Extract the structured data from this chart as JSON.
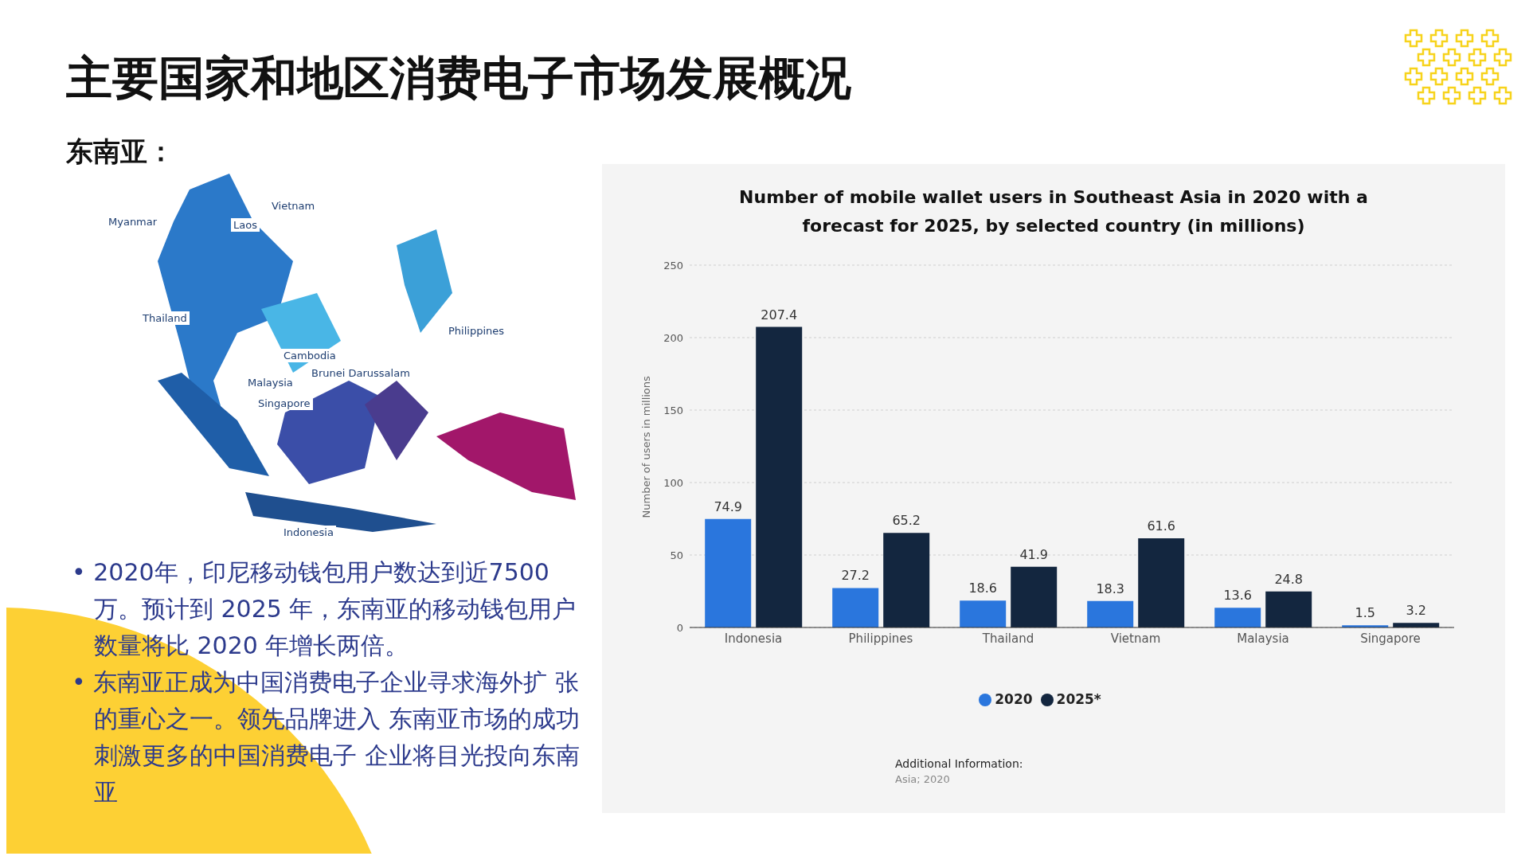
{
  "chart_data": {
    "type": "bar",
    "title": "Number of mobile wallet users in Southeast Asia in 2020 with a forecast for 2025, by selected country (in millions)",
    "ylabel": "Number of users in millions",
    "categories": [
      "Indonesia",
      "Philippines",
      "Thailand",
      "Vietnam",
      "Malaysia",
      "Singapore"
    ],
    "series": [
      {
        "name": "2020",
        "color": "#2a76dd",
        "values": [
          74.9,
          27.2,
          18.6,
          18.3,
          13.6,
          1.5
        ]
      },
      {
        "name": "2025*",
        "color": "#13263f",
        "values": [
          207.4,
          65.2,
          41.9,
          61.6,
          24.8,
          3.2
        ]
      }
    ],
    "ylim": [
      0,
      250
    ],
    "yticks": [
      0,
      50,
      100,
      150,
      200,
      250
    ],
    "grid": "y",
    "legend": "bottom",
    "data_labels": true,
    "annotations": [
      "主要国家和地区消费电子市场发展概况",
      "东南亚：",
      "• 2020年，印尼移动钱包用户数达到近7500万。预计到 2025 年，东南亚的移动钱包用户数量将比 2020 年增长两倍。",
      "• 东南亚正成为中国消费电子企业寻求海外扩 张的重心之一。领先品牌进入 东南亚市场的成功刺激更多的中国消费电子 企业将目光投向东南亚",
      "Myanmar",
      "Vietnam",
      "Laos",
      "Thailand",
      "Philippines",
      "Cambodia",
      "Brunei Darussalam",
      "Malaysia",
      "Singapore",
      "Indonesia",
      "Additional Information:",
      "Asia; 2020"
    ]
  }
}
